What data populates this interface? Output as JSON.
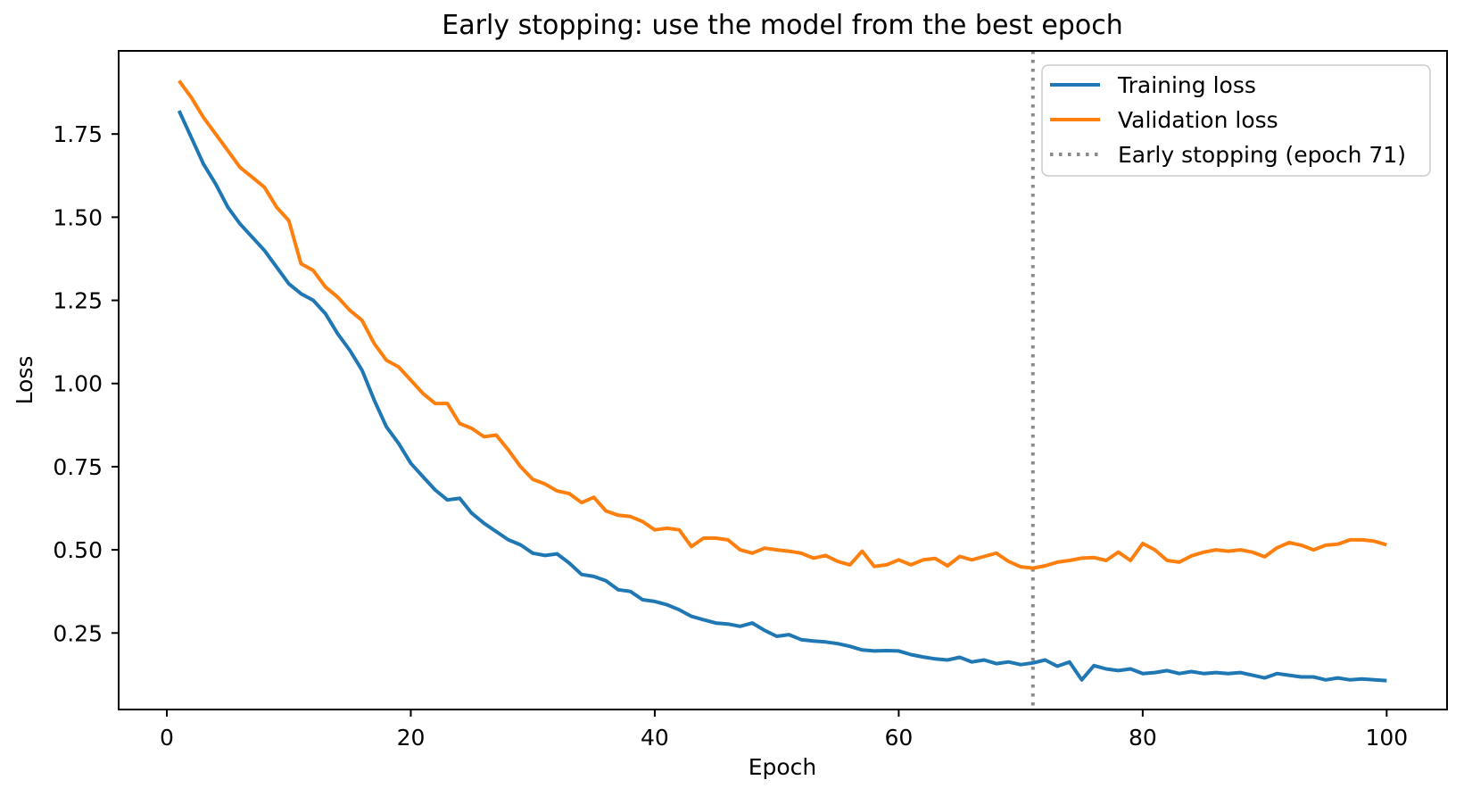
{
  "chart_data": {
    "type": "line",
    "title": "Early stopping: use the model from the best epoch",
    "xlabel": "Epoch",
    "ylabel": "Loss",
    "xlim": [
      -3.95,
      104.95
    ],
    "ylim": [
      0.02,
      2.0
    ],
    "grid": false,
    "legend_position": "upper right",
    "x_ticks": [
      0,
      20,
      40,
      60,
      80,
      100
    ],
    "x_tick_labels": [
      "0",
      "20",
      "40",
      "60",
      "80",
      "100"
    ],
    "y_ticks": [
      0.25,
      0.5,
      0.75,
      1.0,
      1.25,
      1.5,
      1.75
    ],
    "y_tick_labels": [
      "0.25",
      "0.50",
      "0.75",
      "1.00",
      "1.25",
      "1.50",
      "1.75"
    ],
    "early_stop_epoch": 71,
    "early_stop_label": "Early stopping (epoch 71)",
    "early_stop_color": "#8a8a8a",
    "x": [
      1,
      2,
      3,
      4,
      5,
      6,
      7,
      8,
      9,
      10,
      11,
      12,
      13,
      14,
      15,
      16,
      17,
      18,
      19,
      20,
      21,
      22,
      23,
      24,
      25,
      26,
      27,
      28,
      29,
      30,
      31,
      32,
      33,
      34,
      35,
      36,
      37,
      38,
      39,
      40,
      41,
      42,
      43,
      44,
      45,
      46,
      47,
      48,
      49,
      50,
      51,
      52,
      53,
      54,
      55,
      56,
      57,
      58,
      59,
      60,
      61,
      62,
      63,
      64,
      65,
      66,
      67,
      68,
      69,
      70,
      71,
      72,
      73,
      74,
      75,
      76,
      77,
      78,
      79,
      80,
      81,
      82,
      83,
      84,
      85,
      86,
      87,
      88,
      89,
      90,
      91,
      92,
      93,
      94,
      95,
      96,
      97,
      98,
      99,
      100
    ],
    "series": [
      {
        "name": "Training loss",
        "color": "#1f77b4",
        "values": [
          1.82,
          1.74,
          1.66,
          1.6,
          1.53,
          1.48,
          1.44,
          1.4,
          1.35,
          1.3,
          1.27,
          1.25,
          1.21,
          1.15,
          1.1,
          1.04,
          0.95,
          0.87,
          0.82,
          0.76,
          0.72,
          0.68,
          0.65,
          0.655,
          0.61,
          0.58,
          0.555,
          0.53,
          0.515,
          0.49,
          0.483,
          0.488,
          0.46,
          0.426,
          0.42,
          0.407,
          0.38,
          0.375,
          0.35,
          0.345,
          0.335,
          0.32,
          0.3,
          0.29,
          0.28,
          0.277,
          0.27,
          0.28,
          0.258,
          0.24,
          0.245,
          0.23,
          0.226,
          0.223,
          0.218,
          0.21,
          0.199,
          0.196,
          0.197,
          0.196,
          0.185,
          0.178,
          0.172,
          0.169,
          0.177,
          0.163,
          0.169,
          0.158,
          0.163,
          0.155,
          0.16,
          0.169,
          0.15,
          0.163,
          0.109,
          0.152,
          0.142,
          0.137,
          0.142,
          0.128,
          0.131,
          0.137,
          0.128,
          0.134,
          0.128,
          0.131,
          0.128,
          0.131,
          0.123,
          0.115,
          0.128,
          0.123,
          0.118,
          0.118,
          0.109,
          0.115,
          0.109,
          0.112,
          0.109,
          0.107
        ]
      },
      {
        "name": "Validation loss",
        "color": "#ff7f0e",
        "values": [
          1.91,
          1.86,
          1.8,
          1.75,
          1.7,
          1.65,
          1.62,
          1.59,
          1.53,
          1.49,
          1.36,
          1.34,
          1.29,
          1.26,
          1.22,
          1.19,
          1.12,
          1.07,
          1.05,
          1.01,
          0.97,
          0.94,
          0.94,
          0.88,
          0.865,
          0.84,
          0.845,
          0.8,
          0.75,
          0.712,
          0.698,
          0.677,
          0.669,
          0.642,
          0.658,
          0.617,
          0.604,
          0.6,
          0.585,
          0.56,
          0.565,
          0.56,
          0.51,
          0.535,
          0.535,
          0.53,
          0.5,
          0.49,
          0.505,
          0.5,
          0.496,
          0.49,
          0.475,
          0.483,
          0.465,
          0.455,
          0.496,
          0.45,
          0.455,
          0.47,
          0.455,
          0.47,
          0.474,
          0.452,
          0.48,
          0.47,
          0.48,
          0.49,
          0.465,
          0.449,
          0.445,
          0.452,
          0.463,
          0.468,
          0.475,
          0.477,
          0.468,
          0.493,
          0.468,
          0.519,
          0.5,
          0.468,
          0.463,
          0.482,
          0.493,
          0.5,
          0.496,
          0.5,
          0.493,
          0.479,
          0.506,
          0.522,
          0.514,
          0.5,
          0.514,
          0.517,
          0.53,
          0.53,
          0.526,
          0.515
        ]
      }
    ]
  }
}
